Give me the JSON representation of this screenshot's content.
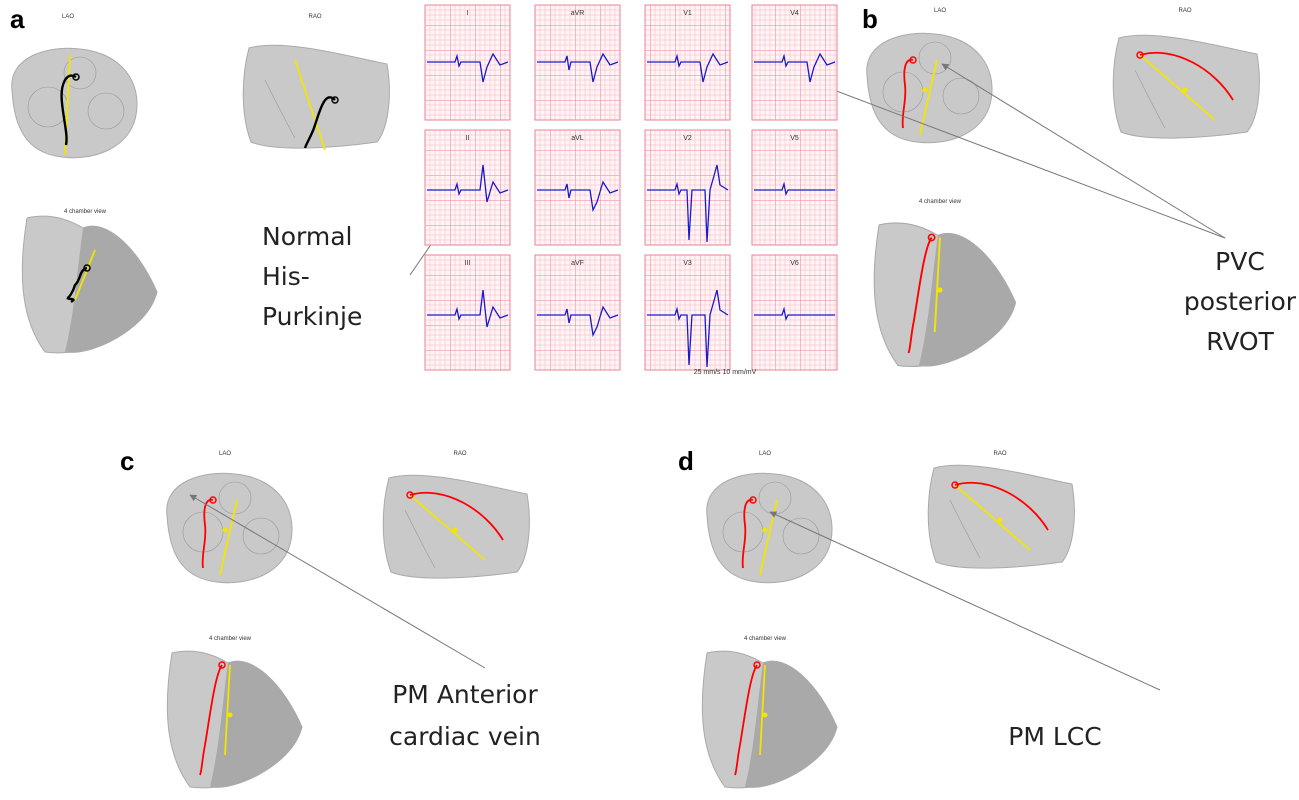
{
  "panels": [
    {
      "letter": "a",
      "views": [
        "LAO",
        "RAO",
        "4 chamber view"
      ],
      "annotation": [
        "Normal",
        "His-",
        "Purkinje"
      ]
    },
    {
      "letter": "b",
      "views": [
        "LAO",
        "RAO",
        "4 chamber view"
      ],
      "annotation": [
        "PVC",
        "posterior",
        "RVOT"
      ]
    },
    {
      "letter": "c",
      "views": [
        "LAO",
        "RAO",
        "4 chamber view"
      ],
      "annotation": [
        "PM Anterior",
        "cardiac vein"
      ]
    },
    {
      "letter": "d",
      "views": [
        "LAO",
        "RAO",
        "4 chamber view"
      ],
      "annotation": [
        "PM LCC"
      ]
    }
  ],
  "ecg": {
    "leads": [
      "I",
      "aVR",
      "V1",
      "V4",
      "II",
      "aVL",
      "V2",
      "V5",
      "III",
      "aVF",
      "V3",
      "V6"
    ],
    "calibration": "25 mm/s  10 mm/mV"
  }
}
